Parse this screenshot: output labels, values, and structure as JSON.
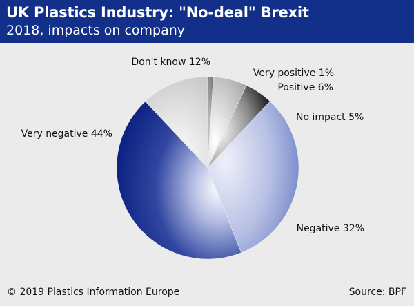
{
  "header": {
    "title": "UK Plastics Industry: \"No-deal\" Brexit",
    "subtitle": "2018, impacts on company"
  },
  "footer": {
    "copyright": "© 2019 Plastics Information Europe",
    "source": "Source: BPF"
  },
  "colors": {
    "header_bg": "#12308a",
    "background": "#ebebeb"
  },
  "chart_data": {
    "type": "pie",
    "start": "12 o'clock",
    "direction": "clockwise",
    "slices": [
      {
        "category": "Very positive",
        "value": 1,
        "label": "Very positive 1%",
        "fill": "grey"
      },
      {
        "category": "Positive",
        "value": 6,
        "label": "Positive 6%",
        "fill": "light-grey"
      },
      {
        "category": "No impact",
        "value": 5,
        "label": "No impact 5%",
        "fill": "black"
      },
      {
        "category": "Negative",
        "value": 32,
        "label": "Negative 32%",
        "fill": "light-blue"
      },
      {
        "category": "Very negative",
        "value": 44,
        "label": "Very negative 44%",
        "fill": "dark-blue"
      },
      {
        "category": "Don't know",
        "value": 12,
        "label": "Don't know 12%",
        "fill": "white-grey"
      }
    ]
  }
}
